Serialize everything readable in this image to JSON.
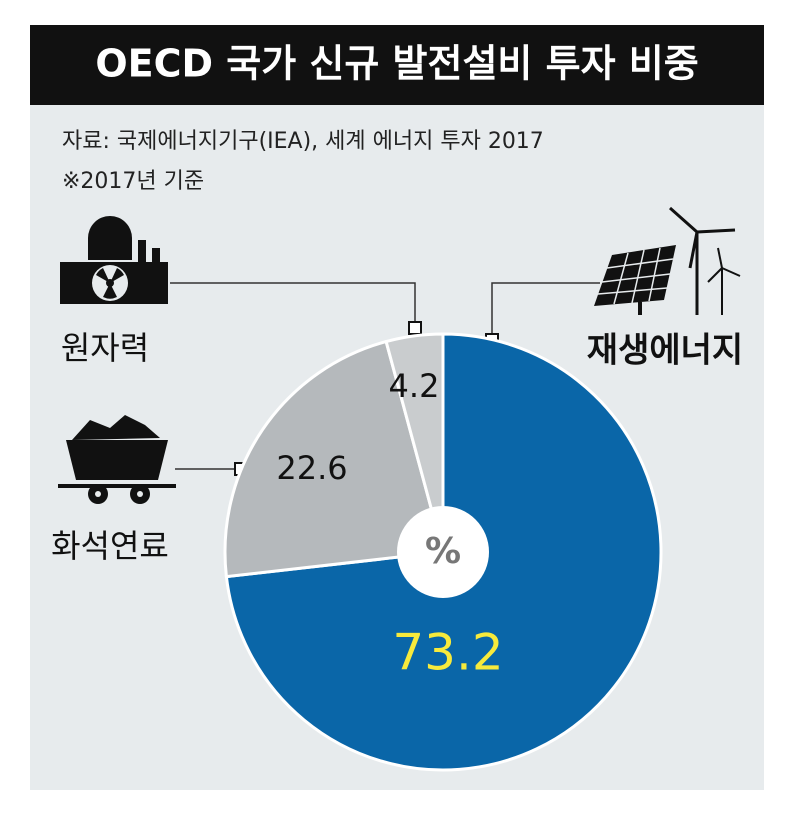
{
  "chart_data": {
    "type": "pie",
    "title": "OECD 국가 신규 발전설비 투자 비중",
    "source": "자료: 국제에너지기구(IEA), 세계 에너지 투자 2017",
    "note": "※2017년 기준",
    "center_label": "%",
    "categories": [
      "재생에너지",
      "화석연료",
      "원자력"
    ],
    "values": [
      73.2,
      22.6,
      4.2
    ],
    "colors": [
      "#0a66a8",
      "#b5b9bc",
      "#c9ccce"
    ],
    "label_colors": [
      "#f7ea3c",
      "#111111",
      "#111111"
    ]
  }
}
